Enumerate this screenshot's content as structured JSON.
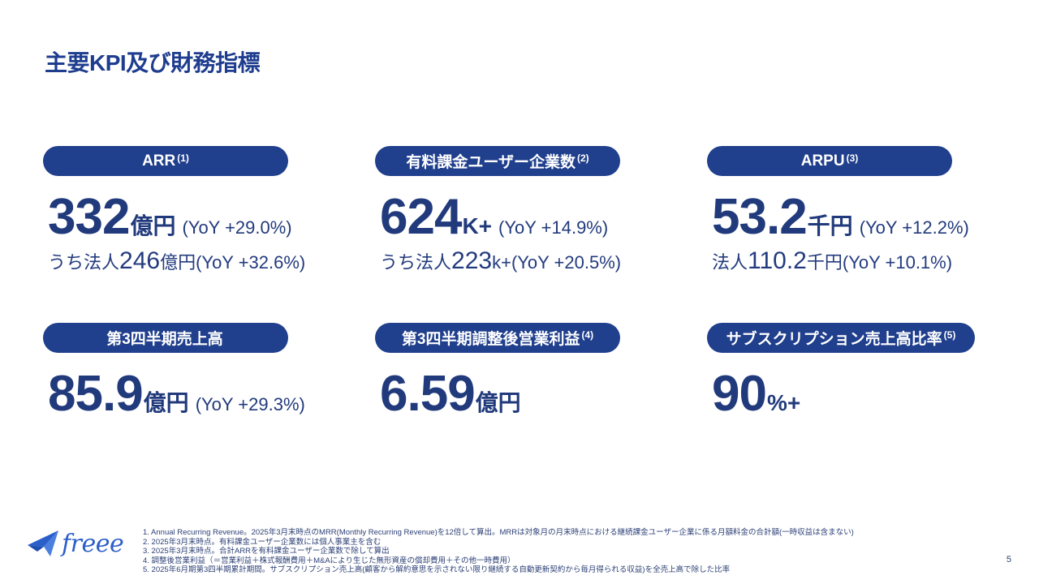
{
  "title": "主要KPI及び財務指標",
  "kpis": [
    {
      "label": "ARR",
      "note": "(1)",
      "value": "332",
      "unit": "億円",
      "yoy": "(YoY +29.0%)",
      "sub_prefix": "うち法人",
      "sub_value": "246",
      "sub_unit": "億円",
      "sub_yoy": "(YoY +32.6%)"
    },
    {
      "label": "有料課金ユーザー企業数",
      "note": "(2)",
      "value": "624",
      "unit": "K+",
      "yoy": "(YoY +14.9%)",
      "sub_prefix": "うち法人",
      "sub_value": "223",
      "sub_unit": "k+",
      "sub_yoy": "(YoY +20.5%)"
    },
    {
      "label": "ARPU",
      "note": "(3)",
      "value": "53.2",
      "unit": "千円",
      "yoy": "(YoY +12.2%)",
      "sub_prefix": "法人",
      "sub_value": "110.2",
      "sub_unit": "千円",
      "sub_yoy": "(YoY +10.1%)"
    },
    {
      "label": "第3四半期売上高",
      "note": "",
      "value": "85.9",
      "unit": "億円",
      "yoy": "(YoY +29.3%)"
    },
    {
      "label": "第3四半期調整後営業利益",
      "note": "(4)",
      "value": "6.59",
      "unit": "億円",
      "yoy": ""
    },
    {
      "label": "サブスクリプション売上高比率",
      "note": "(5)",
      "value": "90",
      "unit": "%+",
      "yoy": ""
    }
  ],
  "logo": {
    "text": "freee"
  },
  "footnotes": [
    "1. Annual Recurring Revenue。2025年3月末時点のMRR(Monthly Recurring Revenue)を12倍して算出。MRRは対象月の月末時点における継続課金ユーザー企業に係る月額料金の合計額(一時収益は含まない)",
    "2. 2025年3月末時点。有料課金ユーザー企業数には個人事業主を含む",
    "3. 2025年3月末時点。合計ARRを有料課金ユーザー企業数で除して算出",
    "4. 調整後営業利益（＝営業利益＋株式報酬費用＋M&Aにより生じた無形資産の償却費用＋その他一時費用）",
    "5. 2025年6月期第3四半期累計期間。サブスクリプション売上高(顧客から解約意思を示されない限り継続する自動更新契約から毎月得られる収益)を全売上高で除した比率"
  ],
  "page_number": "5",
  "colors": {
    "navy": "#203f8c",
    "text": "#213a7c",
    "logo_blue": "#2a5ec9"
  }
}
